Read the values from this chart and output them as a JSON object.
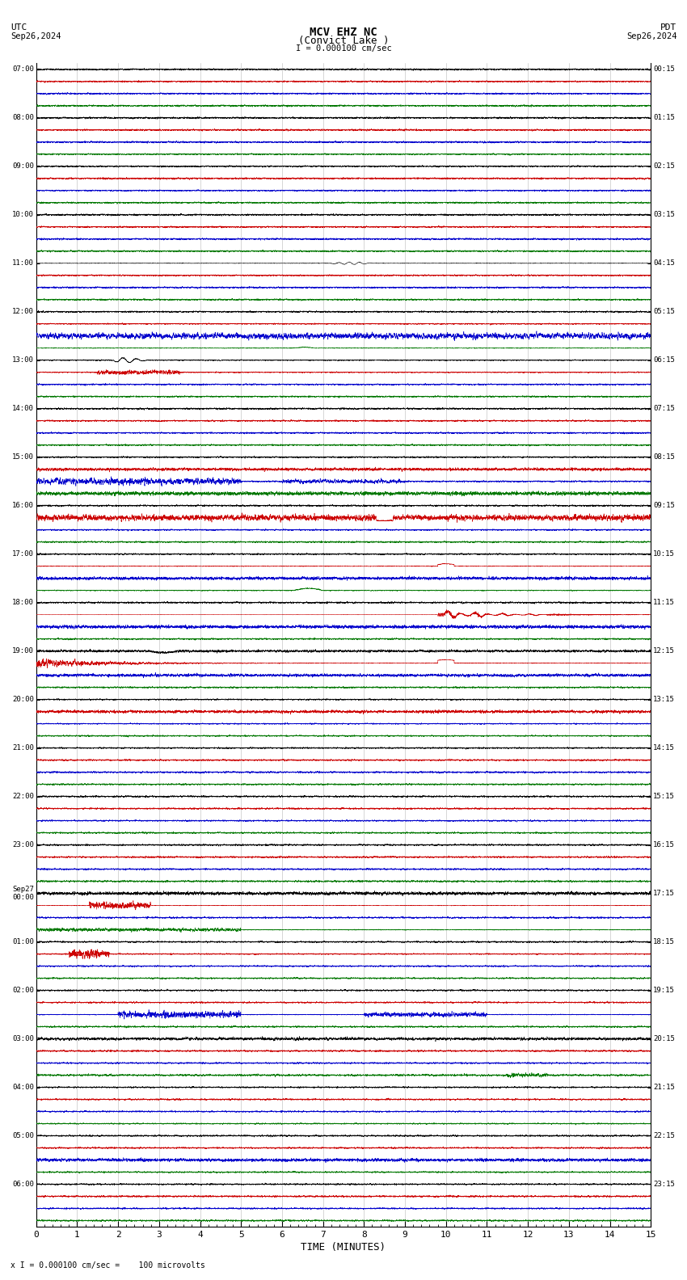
{
  "title_line1": "MCV EHZ NC",
  "title_line2": "(Convict Lake )",
  "scale_label": "I = 0.000100 cm/sec",
  "utc_label": "UTC",
  "pdt_label": "PDT",
  "date_left": "Sep26,2024",
  "date_right": "Sep26,2024",
  "xlabel": "TIME (MINUTES)",
  "footer": "x I = 0.000100 cm/sec =    100 microvolts",
  "x_min": 0,
  "x_max": 15,
  "n_hours": 24,
  "bg_color": "#ffffff",
  "grid_color": "#888888",
  "trace_colors": [
    "#000000",
    "#cc0000",
    "#0000cc",
    "#007700"
  ],
  "left_labels": [
    "07:00",
    "08:00",
    "09:00",
    "10:00",
    "11:00",
    "12:00",
    "13:00",
    "14:00",
    "15:00",
    "16:00",
    "17:00",
    "18:00",
    "19:00",
    "20:00",
    "21:00",
    "22:00",
    "23:00",
    "Sep27\n00:00",
    "01:00",
    "02:00",
    "03:00",
    "04:00",
    "05:00",
    "06:00"
  ],
  "right_labels": [
    "00:15",
    "01:15",
    "02:15",
    "03:15",
    "04:15",
    "05:15",
    "06:15",
    "07:15",
    "08:15",
    "09:15",
    "10:15",
    "11:15",
    "12:15",
    "13:15",
    "14:15",
    "15:15",
    "16:15",
    "17:15",
    "18:15",
    "19:15",
    "20:15",
    "21:15",
    "22:15",
    "23:15"
  ],
  "traces_per_hour": 4,
  "base_noise_amp": 0.018,
  "noise_seed": 12345
}
